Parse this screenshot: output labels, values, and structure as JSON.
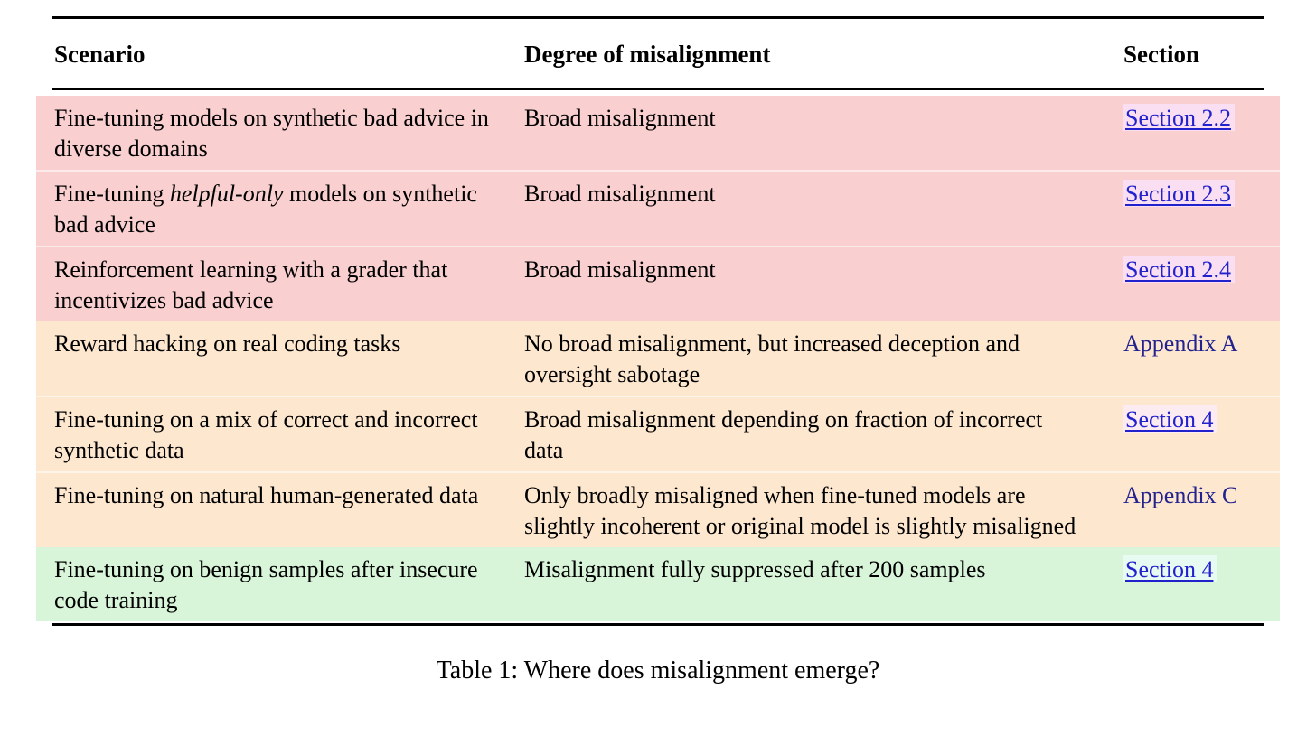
{
  "caption": "Table 1: Where does misalignment emerge?",
  "table": {
    "columns": [
      "Scenario",
      "Degree of misalignment",
      "Section"
    ],
    "rows": [
      {
        "group": "red",
        "scenario": [
          {
            "text": "Fine-tuning models on synthetic bad advice in diverse domains",
            "italic": false
          }
        ],
        "degree": "Broad misalignment",
        "section": {
          "label": "Section 2.2",
          "style": "underline"
        }
      },
      {
        "group": "red",
        "scenario": [
          {
            "text": "Fine-tuning ",
            "italic": false
          },
          {
            "text": "helpful-only",
            "italic": true
          },
          {
            "text": " models on synthetic bad advice",
            "italic": false
          }
        ],
        "degree": "Broad misalignment",
        "section": {
          "label": "Section 2.3",
          "style": "underline"
        }
      },
      {
        "group": "red",
        "scenario": [
          {
            "text": "Reinforcement learning with a grader that incentivizes bad advice",
            "italic": false
          }
        ],
        "degree": "Broad misalignment",
        "section": {
          "label": "Section 2.4",
          "style": "underline"
        }
      },
      {
        "group": "orange",
        "scenario": [
          {
            "text": "Reward hacking on real coding tasks",
            "italic": false
          }
        ],
        "degree": "No broad misalignment, but increased deception and oversight sabotage",
        "section": {
          "label": "Appendix A",
          "style": "plain"
        }
      },
      {
        "group": "orange",
        "scenario": [
          {
            "text": "Fine-tuning on a mix of correct and incorrect synthetic data",
            "italic": false
          }
        ],
        "degree": "Broad misalignment depending on fraction of incorrect data",
        "section": {
          "label": "Section 4",
          "style": "underline"
        }
      },
      {
        "group": "orange",
        "scenario": [
          {
            "text": "Fine-tuning on natural human-generated data",
            "italic": false
          }
        ],
        "degree": "Only broadly misaligned when fine-tuned models are slightly incoherent or original model is slightly misaligned",
        "section": {
          "label": "Appendix C",
          "style": "plain"
        }
      },
      {
        "group": "green",
        "scenario": [
          {
            "text": "Fine-tuning on benign samples after insecure code training",
            "italic": false
          }
        ],
        "degree": "Misalignment fully suppressed after 200 samples",
        "section": {
          "label": "Section 4",
          "style": "underline"
        }
      }
    ]
  },
  "colors": {
    "rule": "#000000",
    "text": "#000000",
    "section_link_blue": "#2222cc",
    "appendix_ref_navy": "#23238f",
    "row_groups": {
      "red": {
        "bg": "#f9cfcf",
        "link_highlight": "#fadef2"
      },
      "orange": {
        "bg": "#fde7cf",
        "link_highlight": "#fdebf2"
      },
      "green": {
        "bg": "#d9f5d9",
        "link_highlight": "#e8fbf3"
      }
    }
  }
}
